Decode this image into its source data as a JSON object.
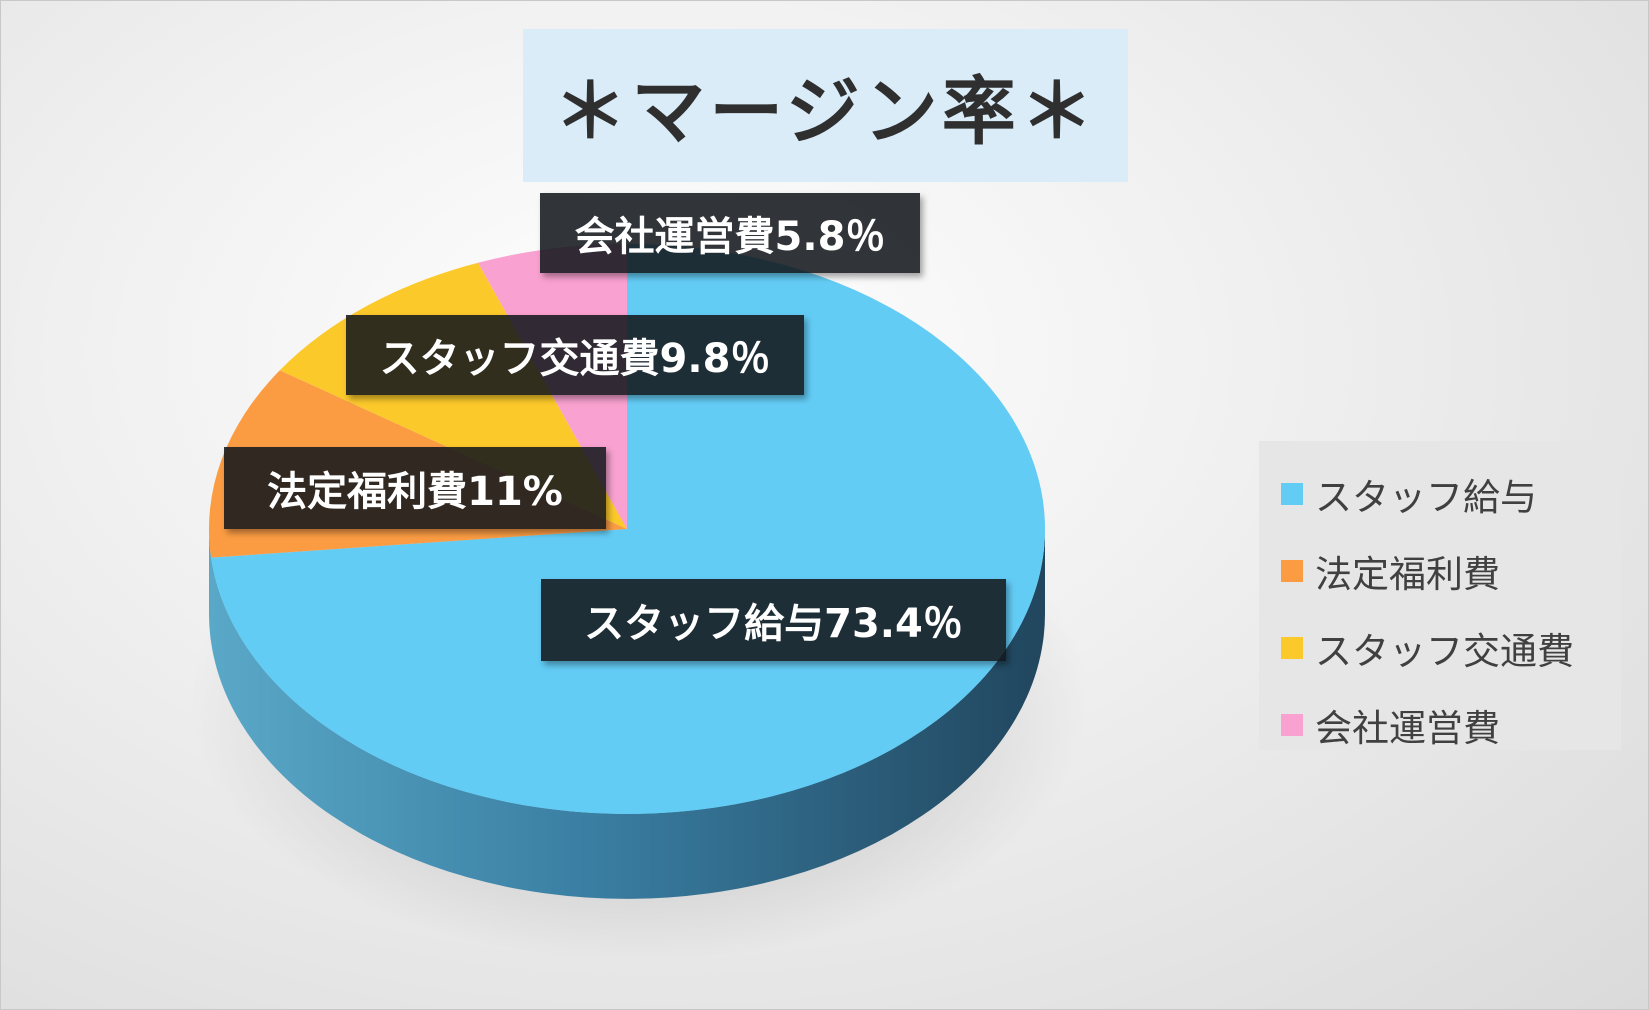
{
  "chart_data": {
    "type": "pie",
    "title": "＊マージン率＊",
    "slices": [
      {
        "name": "スタッフ給与",
        "value": 73.4,
        "label": "スタッフ給与73.4％",
        "color": "#63ccf5"
      },
      {
        "name": "法定福利費",
        "value": 11,
        "label": "法定福利費11%",
        "color": "#fb9c43"
      },
      {
        "name": "スタッフ交通費",
        "value": 9.8,
        "label": "スタッフ交通費9.8％",
        "color": "#fcc92b"
      },
      {
        "name": "会社運営費",
        "value": 5.8,
        "label": "会社運営費5.8％",
        "color": "#f9a1d0"
      }
    ],
    "legend_position": "right",
    "style": "3d"
  }
}
